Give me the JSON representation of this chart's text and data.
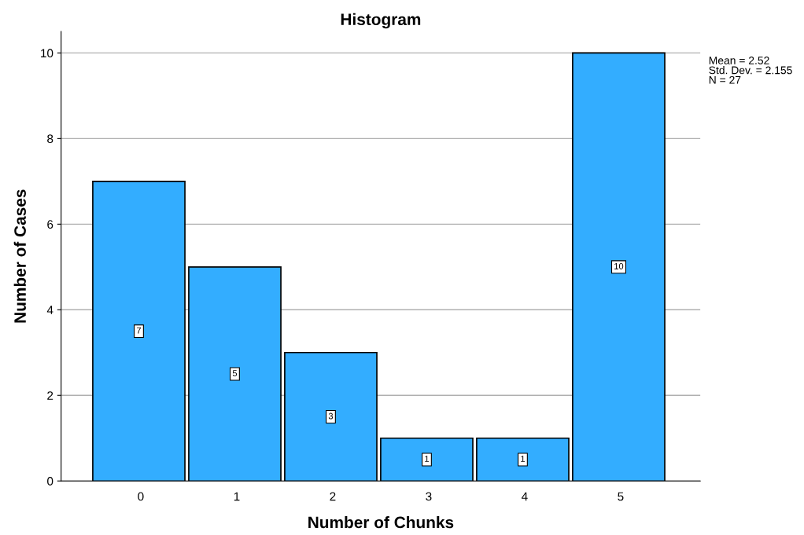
{
  "chart_data": {
    "type": "histogram",
    "title": "Histogram",
    "xlabel": "Number of Chunks",
    "ylabel": "Number of Cases",
    "bins": [
      -0.5,
      0.5,
      1.5,
      2.5,
      3.5,
      4.5,
      5.5
    ],
    "values": [
      7,
      5,
      3,
      1,
      1,
      10
    ],
    "color": "#33adff",
    "xlim": [
      -0.83,
      5.83
    ],
    "xticks": [
      0,
      1,
      2,
      3,
      4,
      5
    ],
    "ylim": [
      0,
      10.5
    ],
    "yticks": [
      0,
      2,
      4,
      6,
      8,
      10
    ],
    "grid": "y",
    "data_labels": true,
    "annotations": [
      "Mean = 2.52\nStd. Dev. = 2.155\nN = 27"
    ]
  }
}
